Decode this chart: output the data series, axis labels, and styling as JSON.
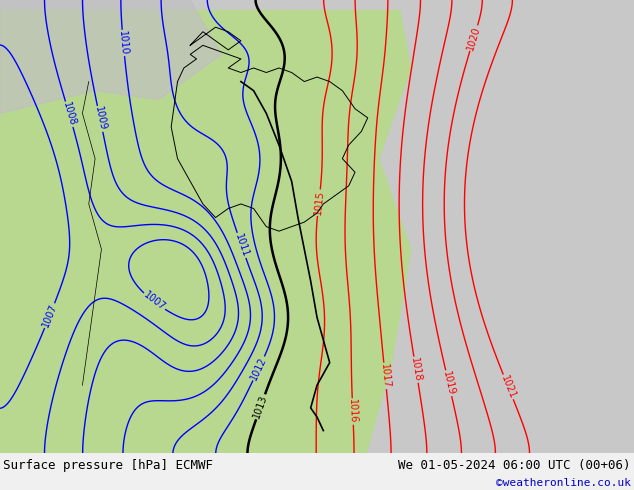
{
  "title_left": "Surface pressure [hPa] ECMWF",
  "title_right": "We 01-05-2024 06:00 UTC (00+06)",
  "copyright": "©weatheronline.co.uk",
  "bg_green": "#b8d890",
  "bg_gray_light": "#c8c8c8",
  "bg_gray_medium": "#b0b0b0",
  "footer_bg": "#e8f0e0",
  "figsize": [
    6.34,
    4.9
  ],
  "dpi": 100,
  "black_isobars": [
    1013
  ],
  "blue_isobars": [
    1007,
    1008,
    1009,
    1010,
    1011,
    1012
  ],
  "red_isobars": [
    1015,
    1016,
    1017,
    1018,
    1019,
    1020,
    1021
  ],
  "label_fontsize": 7
}
